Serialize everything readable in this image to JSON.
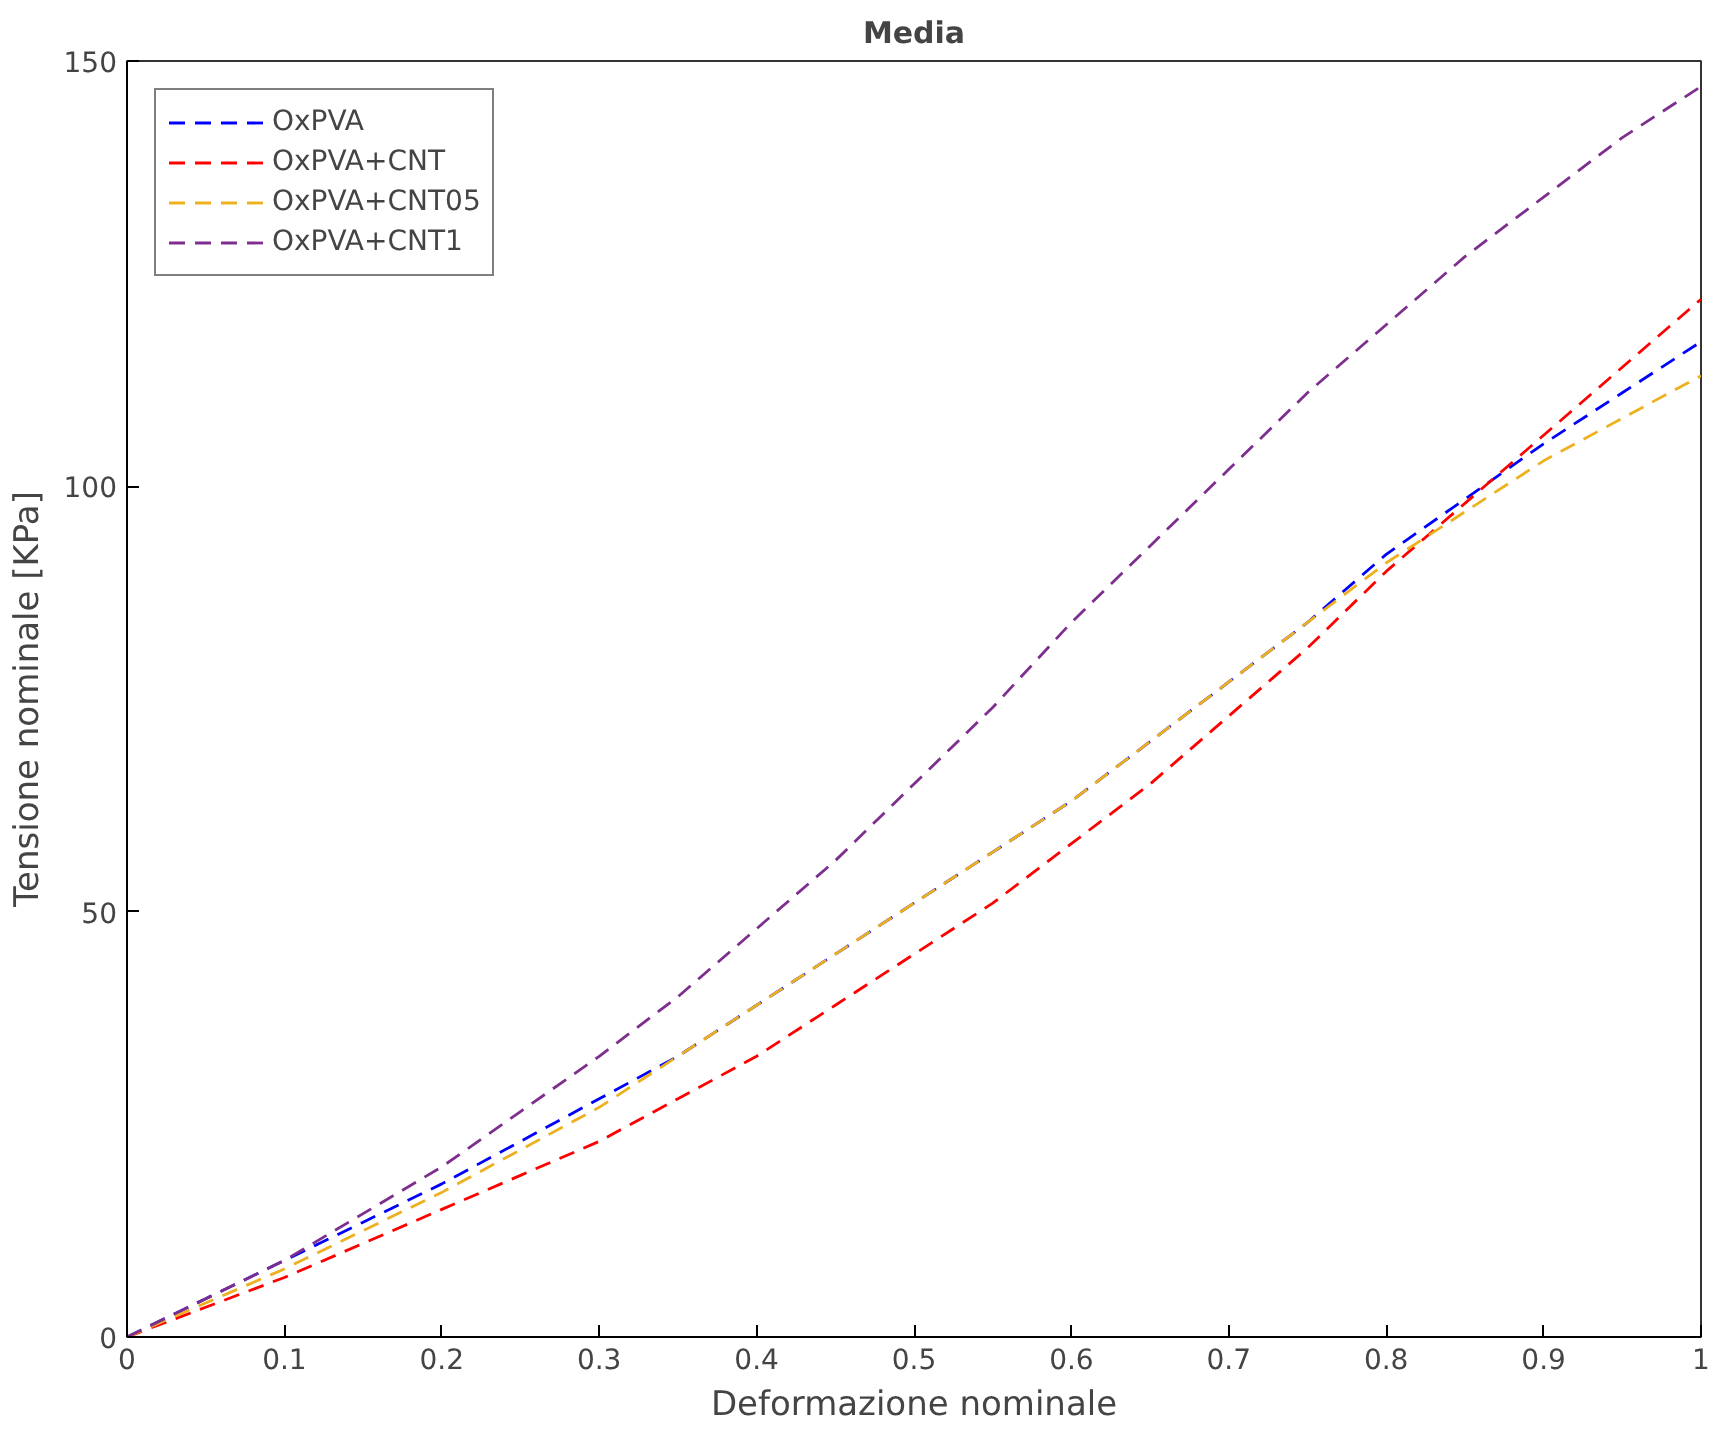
{
  "chart_data": {
    "type": "line",
    "title": "Media",
    "xlabel": "Deformazione nominale",
    "ylabel": "Tensione nominale [KPa]",
    "x": [
      0,
      0.05,
      0.1,
      0.15,
      0.2,
      0.25,
      0.3,
      0.35,
      0.4,
      0.45,
      0.5,
      0.55,
      0.6,
      0.65,
      0.7,
      0.75,
      0.8,
      0.85,
      0.9,
      0.95,
      1
    ],
    "series": [
      {
        "name": "OxPVA",
        "color": "#0000ff",
        "values": [
          0,
          4.5,
          9,
          13.5,
          18,
          23,
          28,
          33,
          39,
          45,
          51,
          57,
          63,
          70,
          77,
          84,
          92,
          98.5,
          105,
          111,
          117
        ]
      },
      {
        "name": "OxPVA+CNT",
        "color": "#ff0000",
        "values": [
          0,
          3.5,
          7,
          11,
          15,
          19,
          23,
          28,
          33,
          39,
          45,
          51,
          58,
          65,
          73,
          81,
          90,
          98,
          106,
          114,
          122
        ]
      },
      {
        "name": "OxPVA+CNT05",
        "color": "#edb120",
        "values": [
          0,
          4,
          8,
          12.5,
          17,
          22,
          27,
          33,
          39,
          45,
          51,
          57,
          63,
          70,
          77,
          84,
          91,
          97,
          103,
          108,
          113
        ]
      },
      {
        "name": "OxPVA+CNT1",
        "color": "#7e2f8e",
        "values": [
          0,
          4.5,
          9,
          14.5,
          20,
          26.5,
          33,
          40,
          48,
          56,
          65,
          74,
          84,
          93,
          102,
          111,
          119,
          127,
          134,
          141,
          147
        ]
      }
    ],
    "xlim": [
      0,
      1
    ],
    "ylim": [
      0,
      150
    ],
    "xticks": [
      0,
      0.1,
      0.2,
      0.3,
      0.4,
      0.5,
      0.6,
      0.7,
      0.8,
      0.9,
      1
    ],
    "yticks": [
      0,
      50,
      100,
      150
    ],
    "grid": false,
    "legend": "top left",
    "line_style": "dashed",
    "marker": "none"
  }
}
